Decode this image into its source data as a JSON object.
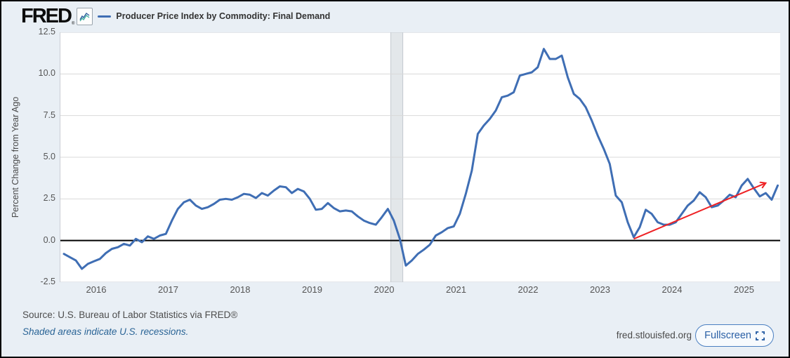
{
  "header": {
    "logo": "FRED",
    "logo_reg": "®"
  },
  "legend": {
    "label": "Producer Price Index by Commodity: Final Demand"
  },
  "footer": {
    "source": "Source: U.S. Bureau of Labor Statistics via FRED®",
    "recession_note": "Shaded areas indicate U.S. recessions.",
    "site": "fred.stlouisfed.org",
    "fullscreen_label": "Fullscreen"
  },
  "colors": {
    "line_blue": "#3f6eb4",
    "arrow_red": "#ee2124",
    "grid_gray": "#d9d9d9",
    "frame_gray": "#c9ced4",
    "zero_black": "#000000",
    "band_fill": "#e3e7ea",
    "band_edge": "#c3c9cf",
    "page_bg": "#e9eff5",
    "link_blue": "#2a6496",
    "button_blue": "#2a5fa5"
  },
  "chart_data": {
    "type": "line",
    "title": "Producer Price Index by Commodity: Final Demand",
    "xlabel": "",
    "ylabel": "Percent Change from Year Ago",
    "ylim": [
      -2.5,
      12.5
    ],
    "grid": true,
    "legend_position": "top-left",
    "y_ticks": [
      12.5,
      10.0,
      7.5,
      5.0,
      2.5,
      0.0,
      -2.5
    ],
    "y_tick_labels": [
      "12.5",
      "10.0",
      "7.5",
      "5.0",
      "2.5",
      "0.0",
      "-2.5"
    ],
    "x_ticks": [
      2016,
      2017,
      2018,
      2019,
      2020,
      2021,
      2022,
      2023,
      2024,
      2025
    ],
    "x_tick_labels": [
      "2016",
      "2017",
      "2018",
      "2019",
      "2020",
      "2021",
      "2022",
      "2023",
      "2024",
      "2025"
    ],
    "series": [
      {
        "name": "Producer Price Index by Commodity: Final Demand",
        "frequency": "monthly",
        "start": "2015-07",
        "units": "Percent Change from Year Ago",
        "values": [
          -0.8,
          -1.0,
          -1.2,
          -1.7,
          -1.4,
          -1.25,
          -1.1,
          -0.75,
          -0.5,
          -0.4,
          -0.2,
          -0.3,
          0.1,
          -0.1,
          0.25,
          0.1,
          0.3,
          0.4,
          1.2,
          1.9,
          2.3,
          2.45,
          2.1,
          1.9,
          2.0,
          2.2,
          2.45,
          2.5,
          2.45,
          2.6,
          2.8,
          2.75,
          2.55,
          2.85,
          2.7,
          3.0,
          3.25,
          3.2,
          2.85,
          3.1,
          2.95,
          2.5,
          1.85,
          1.9,
          2.25,
          1.95,
          1.75,
          1.8,
          1.75,
          1.45,
          1.2,
          1.05,
          0.95,
          1.4,
          1.9,
          1.2,
          0.1,
          -1.5,
          -1.2,
          -0.8,
          -0.55,
          -0.25,
          0.3,
          0.5,
          0.75,
          0.85,
          1.6,
          2.8,
          4.2,
          6.4,
          6.9,
          7.3,
          7.8,
          8.6,
          8.7,
          8.9,
          9.9,
          10.0,
          10.1,
          10.4,
          11.5,
          10.9,
          10.9,
          11.1,
          9.8,
          8.8,
          8.5,
          8.0,
          7.2,
          6.3,
          5.5,
          4.6,
          2.7,
          2.3,
          1.1,
          0.2,
          0.8,
          1.85,
          1.6,
          1.1,
          0.95,
          0.95,
          1.1,
          1.6,
          2.1,
          2.4,
          2.9,
          2.6,
          2.0,
          2.1,
          2.4,
          2.75,
          2.6,
          3.3,
          3.7,
          3.15,
          2.65,
          2.85,
          2.45,
          3.3
        ]
      }
    ],
    "recession_band": {
      "start": "2020-02",
      "end": "2020-04"
    },
    "annotation_arrow": {
      "from": {
        "date": "2023-06",
        "value": 0.1
      },
      "to": {
        "date": "2025-04",
        "value": 3.45
      },
      "color": "#ee2124"
    }
  }
}
